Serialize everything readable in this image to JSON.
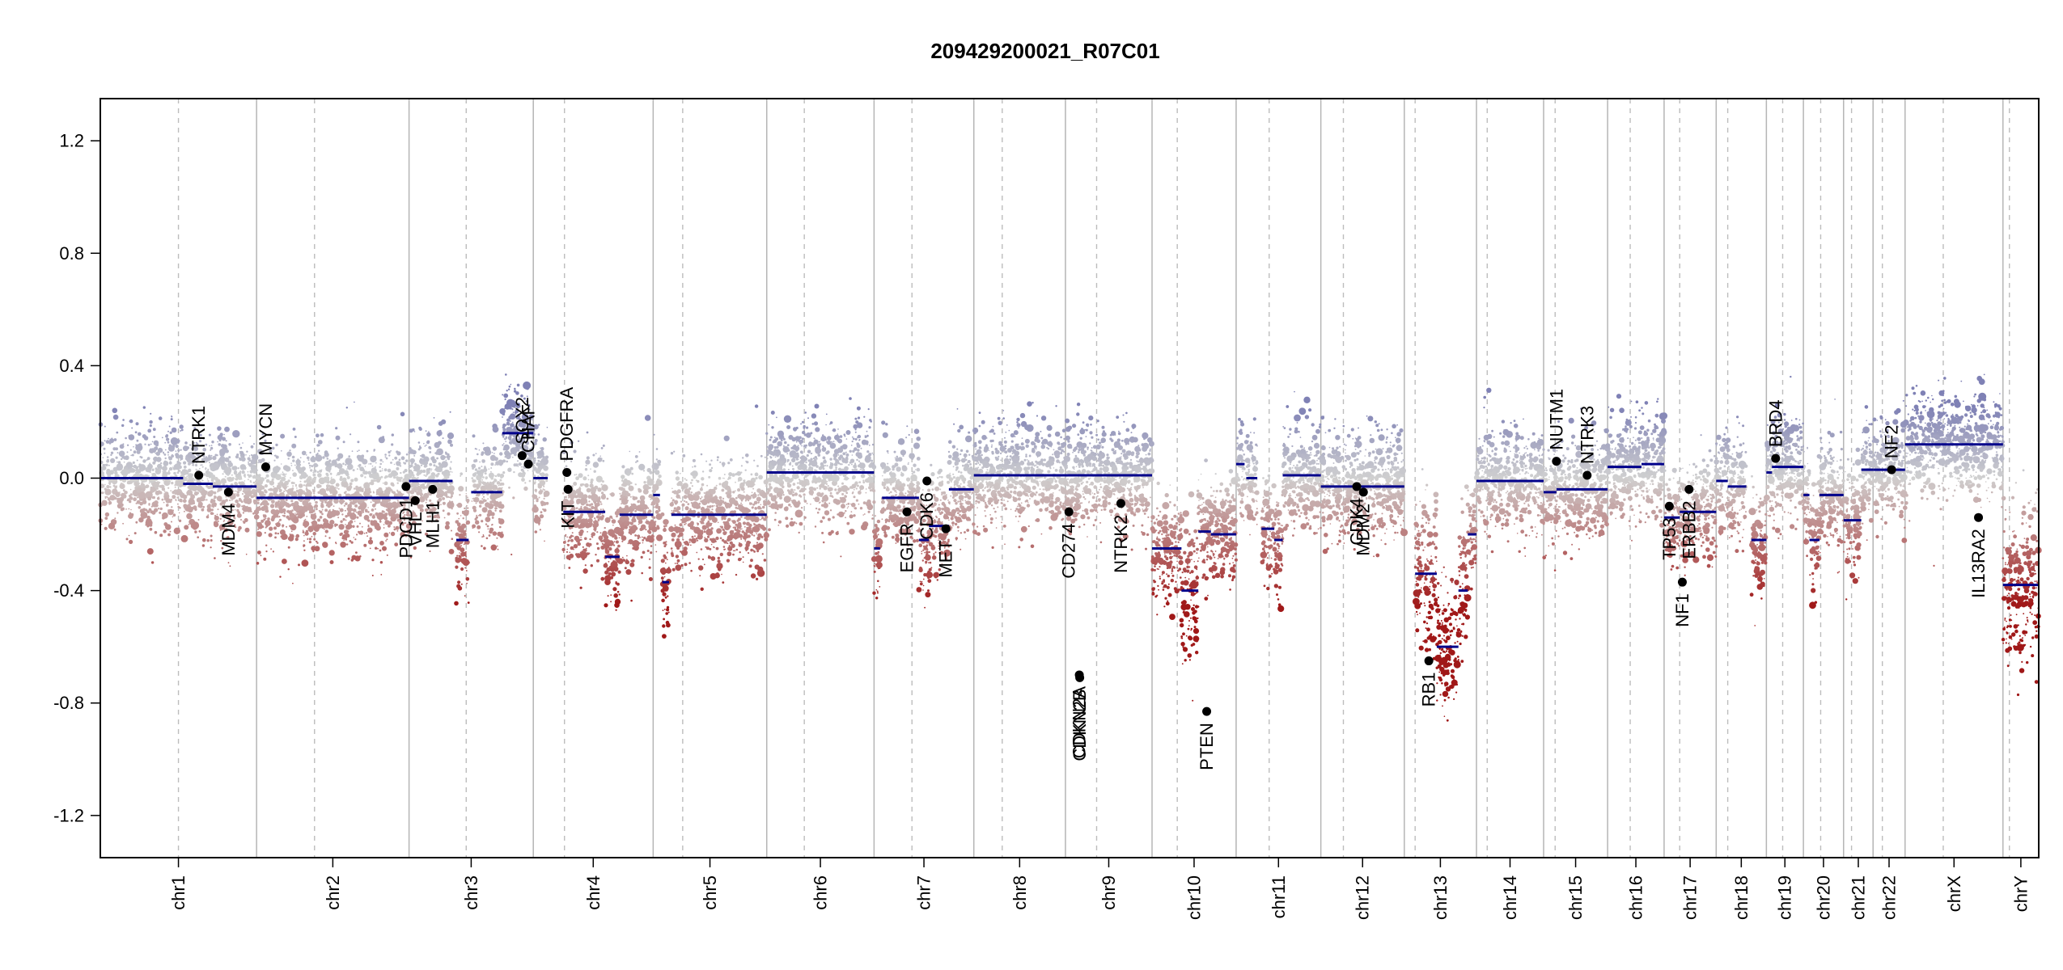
{
  "chart_data": {
    "type": "scatter",
    "title": "209429200021_R07C01",
    "xlabel": "",
    "ylabel": "",
    "ylim": [
      -1.35,
      1.35
    ],
    "y_ticks": [
      {
        "value": 1.2,
        "label": "1.2"
      },
      {
        "value": 0.8,
        "label": "0.8"
      },
      {
        "value": 0.4,
        "label": "0.4"
      },
      {
        "value": 0.0,
        "label": "0.0"
      },
      {
        "value": -0.4,
        "label": "-0.4"
      },
      {
        "value": -0.8,
        "label": "-0.8"
      },
      {
        "value": -1.2,
        "label": "-1.2"
      }
    ],
    "grid": false,
    "colors": {
      "gain": "#7f81b5",
      "neutral": "#d0d0d0",
      "loss": "#a01818",
      "segment": "#00008b",
      "gene": "#000000"
    },
    "chromosomes": [
      {
        "name": "chr1",
        "size": 249,
        "centromere": 0.5
      },
      {
        "name": "chr2",
        "size": 243,
        "centromere": 0.38
      },
      {
        "name": "chr3",
        "size": 198,
        "centromere": 0.46
      },
      {
        "name": "chr4",
        "size": 191,
        "centromere": 0.26
      },
      {
        "name": "chr5",
        "size": 181,
        "centromere": 0.26
      },
      {
        "name": "chr6",
        "size": 171,
        "centromere": 0.35
      },
      {
        "name": "chr7",
        "size": 159,
        "centromere": 0.38
      },
      {
        "name": "chr8",
        "size": 146,
        "centromere": 0.31
      },
      {
        "name": "chr9",
        "size": 138,
        "centromere": 0.36
      },
      {
        "name": "chr10",
        "size": 134,
        "centromere": 0.3
      },
      {
        "name": "chr11",
        "size": 135,
        "centromere": 0.39
      },
      {
        "name": "chr12",
        "size": 133,
        "centromere": 0.27
      },
      {
        "name": "chr13",
        "size": 115,
        "centromere": 0.15
      },
      {
        "name": "chr14",
        "size": 107,
        "centromere": 0.16
      },
      {
        "name": "chr15",
        "size": 102,
        "centromere": 0.18
      },
      {
        "name": "chr16",
        "size": 90,
        "centromere": 0.4
      },
      {
        "name": "chr17",
        "size": 83,
        "centromere": 0.3
      },
      {
        "name": "chr18",
        "size": 80,
        "centromere": 0.23
      },
      {
        "name": "chr19",
        "size": 59,
        "centromere": 0.44
      },
      {
        "name": "chr20",
        "size": 64,
        "centromere": 0.43
      },
      {
        "name": "chr21",
        "size": 47,
        "centromere": 0.27
      },
      {
        "name": "chr22",
        "size": 51,
        "centromere": 0.29
      },
      {
        "name": "chrX",
        "size": 156,
        "centromere": 0.39
      },
      {
        "name": "chrY",
        "size": 57,
        "centromere": 0.18
      }
    ],
    "segments": [
      {
        "chr": "chr1",
        "from": 0.0,
        "to": 0.53,
        "value": 0.0
      },
      {
        "chr": "chr1",
        "from": 0.53,
        "to": 0.72,
        "value": -0.02
      },
      {
        "chr": "chr1",
        "from": 0.72,
        "to": 1.0,
        "value": -0.03
      },
      {
        "chr": "chr2",
        "from": 0.0,
        "to": 1.0,
        "value": -0.07
      },
      {
        "chr": "chr3",
        "from": 0.0,
        "to": 0.35,
        "value": -0.01
      },
      {
        "chr": "chr3",
        "from": 0.38,
        "to": 0.48,
        "value": -0.22
      },
      {
        "chr": "chr3",
        "from": 0.5,
        "to": 0.75,
        "value": -0.05
      },
      {
        "chr": "chr3",
        "from": 0.75,
        "to": 1.0,
        "value": 0.16
      },
      {
        "chr": "chr4",
        "from": 0.0,
        "to": 0.12,
        "value": 0.0
      },
      {
        "chr": "chr4",
        "from": 0.25,
        "to": 0.6,
        "value": -0.12
      },
      {
        "chr": "chr4",
        "from": 0.6,
        "to": 0.72,
        "value": -0.28
      },
      {
        "chr": "chr4",
        "from": 0.72,
        "to": 1.0,
        "value": -0.13
      },
      {
        "chr": "chr5",
        "from": 0.0,
        "to": 0.06,
        "value": -0.06
      },
      {
        "chr": "chr5",
        "from": 0.08,
        "to": 0.14,
        "value": -0.37
      },
      {
        "chr": "chr5",
        "from": 0.16,
        "to": 1.0,
        "value": -0.13
      },
      {
        "chr": "chr6",
        "from": 0.0,
        "to": 1.0,
        "value": 0.02
      },
      {
        "chr": "chr7",
        "from": 0.0,
        "to": 0.06,
        "value": -0.25
      },
      {
        "chr": "chr7",
        "from": 0.08,
        "to": 0.45,
        "value": -0.07
      },
      {
        "chr": "chr7",
        "from": 0.45,
        "to": 0.55,
        "value": -0.22
      },
      {
        "chr": "chr7",
        "from": 0.55,
        "to": 0.75,
        "value": -0.17
      },
      {
        "chr": "chr7",
        "from": 0.75,
        "to": 1.0,
        "value": -0.04
      },
      {
        "chr": "chr8",
        "from": 0.0,
        "to": 1.0,
        "value": 0.01
      },
      {
        "chr": "chr9",
        "from": 0.0,
        "to": 1.0,
        "value": 0.01
      },
      {
        "chr": "chr10",
        "from": 0.0,
        "to": 0.35,
        "value": -0.25
      },
      {
        "chr": "chr10",
        "from": 0.35,
        "to": 0.55,
        "value": -0.4
      },
      {
        "chr": "chr10",
        "from": 0.55,
        "to": 0.7,
        "value": -0.19
      },
      {
        "chr": "chr10",
        "from": 0.7,
        "to": 1.0,
        "value": -0.2
      },
      {
        "chr": "chr11",
        "from": 0.0,
        "to": 0.1,
        "value": 0.05
      },
      {
        "chr": "chr11",
        "from": 0.12,
        "to": 0.25,
        "value": 0.0
      },
      {
        "chr": "chr11",
        "from": 0.3,
        "to": 0.45,
        "value": -0.18
      },
      {
        "chr": "chr11",
        "from": 0.45,
        "to": 0.55,
        "value": -0.22
      },
      {
        "chr": "chr11",
        "from": 0.55,
        "to": 1.0,
        "value": 0.01
      },
      {
        "chr": "chr12",
        "from": 0.0,
        "to": 1.0,
        "value": -0.03
      },
      {
        "chr": "chr13",
        "from": 0.15,
        "to": 0.45,
        "value": -0.34
      },
      {
        "chr": "chr13",
        "from": 0.45,
        "to": 0.75,
        "value": -0.6
      },
      {
        "chr": "chr13",
        "from": 0.75,
        "to": 0.88,
        "value": -0.4
      },
      {
        "chr": "chr13",
        "from": 0.88,
        "to": 1.0,
        "value": -0.2
      },
      {
        "chr": "chr14",
        "from": 0.0,
        "to": 1.0,
        "value": -0.01
      },
      {
        "chr": "chr15",
        "from": 0.0,
        "to": 0.2,
        "value": -0.05
      },
      {
        "chr": "chr15",
        "from": 0.2,
        "to": 1.0,
        "value": -0.04
      },
      {
        "chr": "chr16",
        "from": 0.0,
        "to": 0.6,
        "value": 0.04
      },
      {
        "chr": "chr16",
        "from": 0.6,
        "to": 1.0,
        "value": 0.05
      },
      {
        "chr": "chr17",
        "from": 0.0,
        "to": 0.3,
        "value": -0.14
      },
      {
        "chr": "chr17",
        "from": 0.3,
        "to": 1.0,
        "value": -0.12
      },
      {
        "chr": "chr18",
        "from": 0.0,
        "to": 0.23,
        "value": -0.01
      },
      {
        "chr": "chr18",
        "from": 0.23,
        "to": 0.6,
        "value": -0.03
      },
      {
        "chr": "chr18",
        "from": 0.7,
        "to": 1.0,
        "value": -0.22
      },
      {
        "chr": "chr19",
        "from": 0.0,
        "to": 0.15,
        "value": 0.02
      },
      {
        "chr": "chr19",
        "from": 0.15,
        "to": 1.0,
        "value": 0.04
      },
      {
        "chr": "chr20",
        "from": 0.0,
        "to": 0.15,
        "value": -0.06
      },
      {
        "chr": "chr20",
        "from": 0.15,
        "to": 0.4,
        "value": -0.22
      },
      {
        "chr": "chr20",
        "from": 0.4,
        "to": 1.0,
        "value": -0.06
      },
      {
        "chr": "chr21",
        "from": 0.0,
        "to": 0.6,
        "value": -0.15
      },
      {
        "chr": "chr21",
        "from": 0.6,
        "to": 1.0,
        "value": 0.03
      },
      {
        "chr": "chr22",
        "from": 0.0,
        "to": 1.0,
        "value": 0.03
      },
      {
        "chr": "chrX",
        "from": 0.0,
        "to": 1.0,
        "value": 0.12
      },
      {
        "chr": "chrY",
        "from": 0.0,
        "to": 1.0,
        "value": -0.38
      }
    ],
    "genes": [
      {
        "name": "NTRK1",
        "chr": "chr1",
        "pos": 0.63,
        "value": 0.01,
        "label_side": "above"
      },
      {
        "name": "MDM4",
        "chr": "chr1",
        "pos": 0.82,
        "value": -0.05,
        "label_side": "below"
      },
      {
        "name": "MYCN",
        "chr": "chr2",
        "pos": 0.06,
        "value": 0.04,
        "label_side": "above"
      },
      {
        "name": "PDCD1",
        "chr": "chr2",
        "pos": 0.98,
        "value": -0.03,
        "label_side": "below"
      },
      {
        "name": "VHL",
        "chr": "chr3",
        "pos": 0.05,
        "value": -0.08,
        "label_side": "below"
      },
      {
        "name": "MLH1",
        "chr": "chr3",
        "pos": 0.19,
        "value": -0.04,
        "label_side": "below"
      },
      {
        "name": "SOX2",
        "chr": "chr3",
        "pos": 0.91,
        "value": 0.08,
        "label_side": "above"
      },
      {
        "name": "CHAF",
        "chr": "chr3",
        "pos": 0.96,
        "value": 0.05,
        "label_side": "above"
      },
      {
        "name": "PDGFRA",
        "chr": "chr4",
        "pos": 0.28,
        "value": 0.02,
        "label_side": "above"
      },
      {
        "name": "KIT",
        "chr": "chr4",
        "pos": 0.29,
        "value": -0.04,
        "label_side": "below"
      },
      {
        "name": "EGFR",
        "chr": "chr7",
        "pos": 0.33,
        "value": -0.12,
        "label_side": "below"
      },
      {
        "name": "CDK6",
        "chr": "chr7",
        "pos": 0.53,
        "value": -0.01,
        "label_side": "below"
      },
      {
        "name": "MET",
        "chr": "chr7",
        "pos": 0.72,
        "value": -0.18,
        "label_side": "below"
      },
      {
        "name": "CD274",
        "chr": "chr9",
        "pos": 0.04,
        "value": -0.12,
        "label_side": "below"
      },
      {
        "name": "CDKN2A",
        "chr": "chr9",
        "pos": 0.16,
        "value": -0.7,
        "label_side": "below"
      },
      {
        "name": "CDKN2B",
        "chr": "chr9",
        "pos": 0.165,
        "value": -0.71,
        "label_side": "below"
      },
      {
        "name": "NTRK2",
        "chr": "chr9",
        "pos": 0.64,
        "value": -0.09,
        "label_side": "below"
      },
      {
        "name": "PTEN",
        "chr": "chr10",
        "pos": 0.65,
        "value": -0.83,
        "label_side": "below"
      },
      {
        "name": "CDK4",
        "chr": "chr12",
        "pos": 0.43,
        "value": -0.03,
        "label_side": "below"
      },
      {
        "name": "MDM2",
        "chr": "chr12",
        "pos": 0.51,
        "value": -0.05,
        "label_side": "below"
      },
      {
        "name": "RB1",
        "chr": "chr13",
        "pos": 0.34,
        "value": -0.65,
        "label_side": "below"
      },
      {
        "name": "NUTM1",
        "chr": "chr15",
        "pos": 0.2,
        "value": 0.06,
        "label_side": "above"
      },
      {
        "name": "NTRK3",
        "chr": "chr15",
        "pos": 0.68,
        "value": 0.01,
        "label_side": "above"
      },
      {
        "name": "TP53",
        "chr": "chr17",
        "pos": 0.1,
        "value": -0.1,
        "label_side": "below"
      },
      {
        "name": "NF1",
        "chr": "chr17",
        "pos": 0.35,
        "value": -0.37,
        "label_side": "below"
      },
      {
        "name": "ERBB2",
        "chr": "chr17",
        "pos": 0.48,
        "value": -0.04,
        "label_side": "below"
      },
      {
        "name": "BRD4",
        "chr": "chr19",
        "pos": 0.25,
        "value": 0.07,
        "label_side": "above"
      },
      {
        "name": "NF2",
        "chr": "chr22",
        "pos": 0.58,
        "value": 0.03,
        "label_side": "above"
      },
      {
        "name": "IL13RA2",
        "chr": "chrX",
        "pos": 0.75,
        "value": -0.14,
        "label_side": "below"
      }
    ]
  }
}
